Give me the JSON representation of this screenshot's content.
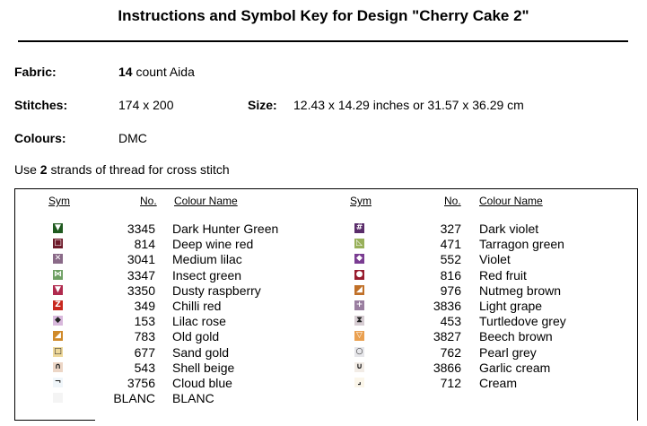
{
  "title": "Instructions and Symbol Key for Design \"Cherry Cake 2\"",
  "info": {
    "fabric_label": "Fabric:",
    "fabric_count": "14",
    "fabric_rest": " count Aida",
    "stitches_label": "Stitches:",
    "stitches_value": "174 x 200",
    "size_label": "Size:",
    "size_value": "12.43 x 14.29 inches or 31.57 x 36.29 cm",
    "colours_label": "Colours:",
    "colours_value": "DMC",
    "note_prefix": "Use ",
    "note_strands": "2",
    "note_suffix": " strands of thread for cross stitch"
  },
  "key": {
    "headers": {
      "sym": "Sym",
      "no": "No.",
      "name": "Colour Name"
    },
    "left": [
      {
        "no": "3345",
        "name": "Dark Hunter Green",
        "color": "#1f5a1f",
        "glyph": "▼",
        "icon": "down-triangle-icon"
      },
      {
        "no": "814",
        "name": "Deep wine red",
        "color": "#6e1a2a",
        "glyph": "□",
        "icon": "square-icon"
      },
      {
        "no": "3041",
        "name": "Medium lilac",
        "color": "#8a6a88",
        "glyph": "✕",
        "icon": "cross-icon"
      },
      {
        "no": "3347",
        "name": "Insect green",
        "color": "#6fa064",
        "glyph": "⋈",
        "icon": "bowtie-icon"
      },
      {
        "no": "3350",
        "name": "Dusty raspberry",
        "color": "#b02a4e",
        "glyph": "▼",
        "icon": "down-triangle-icon"
      },
      {
        "no": "349",
        "name": "Chilli red",
        "color": "#c8281e",
        "glyph": "Z",
        "icon": "z-letter-icon"
      },
      {
        "no": "153",
        "name": "Lilac rose",
        "color": "#d8b8dc",
        "glyph": "◆",
        "icon": "diamond-icon"
      },
      {
        "no": "783",
        "name": "Old gold",
        "color": "#d08a2a",
        "glyph": "◢",
        "icon": "corner-triangle-icon"
      },
      {
        "no": "677",
        "name": "Sand gold",
        "color": "#eed89a",
        "glyph": "□",
        "icon": "square-icon"
      },
      {
        "no": "543",
        "name": "Shell beige",
        "color": "#ecd6c6",
        "glyph": "∩",
        "icon": "arch-icon"
      },
      {
        "no": "3756",
        "name": "Cloud blue",
        "color": "#f0f6fa",
        "glyph": "¬",
        "icon": "corner-icon"
      },
      {
        "no": "BLANC",
        "name": "BLANC",
        "color": "#f4f4f4",
        "glyph": "",
        "icon": "blank-icon"
      }
    ],
    "right": [
      {
        "no": "327",
        "name": "Dark violet",
        "color": "#5a2c6a",
        "glyph": "#",
        "icon": "hash-icon"
      },
      {
        "no": "471",
        "name": "Tarragon green",
        "color": "#98b05a",
        "glyph": "◺",
        "icon": "corner-triangle-icon"
      },
      {
        "no": "552",
        "name": "Violet",
        "color": "#7a3c92",
        "glyph": "◆",
        "icon": "diamond-icon"
      },
      {
        "no": "816",
        "name": "Red fruit",
        "color": "#981c2e",
        "glyph": "●",
        "icon": "circle-icon"
      },
      {
        "no": "976",
        "name": "Nutmeg brown",
        "color": "#c07028",
        "glyph": "◢",
        "icon": "corner-triangle-icon"
      },
      {
        "no": "3836",
        "name": "Light grape",
        "color": "#9a7ea0",
        "glyph": "+",
        "icon": "plus-icon"
      },
      {
        "no": "453",
        "name": "Turtledove grey",
        "color": "#d6ccd2",
        "glyph": "⧗",
        "icon": "hourglass-icon"
      },
      {
        "no": "3827",
        "name": "Beech brown",
        "color": "#eaa050",
        "glyph": "▽",
        "icon": "down-triangle-icon"
      },
      {
        "no": "762",
        "name": "Pearl grey",
        "color": "#e6e6ea",
        "glyph": "○",
        "icon": "circle-icon"
      },
      {
        "no": "3866",
        "name": "Garlic cream",
        "color": "#f2ece6",
        "glyph": "∪",
        "icon": "cup-icon"
      },
      {
        "no": "712",
        "name": "Cream",
        "color": "#fbf6ea",
        "glyph": "⌟",
        "icon": "corner-icon"
      }
    ]
  }
}
